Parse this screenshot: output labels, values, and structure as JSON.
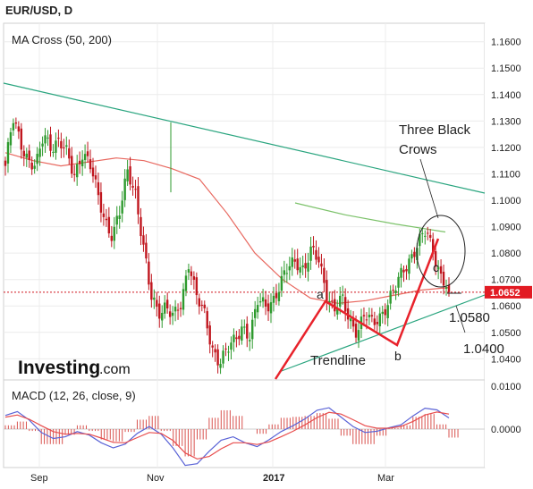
{
  "header": {
    "symbol_title": "EUR/USD, D"
  },
  "main_panel": {
    "indicator_label": "MA Cross (50, 200)",
    "price_axis_ticks": [
      "1.1600",
      "1.1500",
      "1.1400",
      "1.1300",
      "1.1200",
      "1.1100",
      "1.1000",
      "1.0900",
      "1.0800",
      "1.0700",
      "1.0600",
      "1.0500",
      "1.0400"
    ],
    "current_price": "1.0652",
    "annotations": {
      "three_black_crows_line1": "Three Black",
      "three_black_crows_line2": "Crows",
      "trendline": "Trendline",
      "point_a": "a",
      "point_b": "b",
      "point_c": "c",
      "target_1": "1.0580",
      "target_2": "1.0400"
    },
    "watermark": {
      "brand": "Investing",
      "suffix": ".com"
    }
  },
  "macd_panel": {
    "label": "MACD (12, 26, close, 9)",
    "axis_ticks": [
      "0.0100",
      "0.0000"
    ]
  },
  "x_axis": {
    "labels": [
      "Sep",
      "Nov",
      "2017",
      "Mar"
    ]
  },
  "colors": {
    "up_candle": "#2e9a2e",
    "down_candle": "#c0161e",
    "ma_fast": "#e8685f",
    "ma_slow": "#7cc26a",
    "channel": "#2aa57f",
    "pattern_lines": "#e8222b",
    "price_label_bg": "#e21b23",
    "macd_line": "#5a63d6",
    "signal_line": "#e84d4d",
    "histogram": "#d9534f"
  },
  "chart_data": {
    "type": "candlestick",
    "title": "EUR/USD, D",
    "y_range": [
      1.032,
      1.167
    ],
    "y_ticks": [
      1.16,
      1.15,
      1.14,
      1.13,
      1.12,
      1.11,
      1.1,
      1.09,
      1.08,
      1.07,
      1.06,
      1.05,
      1.04
    ],
    "x_labels": [
      "Sep",
      "Nov",
      "2017",
      "Mar"
    ],
    "last_close": 1.0652,
    "series": [
      {
        "name": "MA Cross (50, 200)",
        "values": [
          1.118,
          1.115,
          1.113,
          1.1145,
          1.116,
          1.115,
          1.112,
          1.108,
          1.095,
          1.08,
          1.07,
          1.063,
          1.061,
          1.062,
          1.064,
          1.066,
          1.067
        ]
      },
      {
        "name": "MA Cross (50, 200)",
        "values": [
          1.099,
          1.0945,
          1.091,
          1.088
        ]
      }
    ],
    "price_path": [
      1.113,
      1.13,
      1.122,
      1.116,
      1.112,
      1.124,
      1.121,
      1.123,
      1.117,
      1.109,
      1.119,
      1.114,
      1.102,
      1.093,
      1.087,
      1.095,
      1.111,
      1.104,
      1.083,
      1.063,
      1.058,
      1.061,
      1.055,
      1.06,
      1.078,
      1.064,
      1.056,
      1.044,
      1.04,
      1.043,
      1.046,
      1.053,
      1.049,
      1.061,
      1.06,
      1.063,
      1.068,
      1.074,
      1.078,
      1.074,
      1.08,
      1.077,
      1.066,
      1.058,
      1.062,
      1.055,
      1.051,
      1.056,
      1.053,
      1.057,
      1.061,
      1.066,
      1.074,
      1.079,
      1.083,
      1.088,
      1.081,
      1.071,
      1.0652
    ],
    "annotation_targets": [
      1.058,
      1.04
    ],
    "macd": {
      "name": "MACD (12, 26, close, 9)",
      "y_range": [
        -0.009,
        0.0115
      ],
      "y_ticks": [
        0.01,
        0.0
      ],
      "macd_values": [
        0.0032,
        0.0041,
        0.0021,
        -0.0008,
        -0.0022,
        -0.0018,
        -0.0006,
        -0.0014,
        -0.0032,
        -0.0044,
        -0.0035,
        -0.001,
        0.0006,
        -0.0012,
        -0.0045,
        -0.0085,
        -0.0081,
        -0.0052,
        -0.0026,
        -0.0018,
        -0.0032,
        -0.0041,
        -0.0025,
        -0.0006,
        0.0008,
        0.0024,
        0.0044,
        0.005,
        0.0028,
        0.0006,
        -0.0008,
        -0.0005,
        0.0003,
        0.001,
        0.0031,
        0.0049,
        0.0045,
        0.0026
      ],
      "signal_values": [
        0.0028,
        0.0033,
        0.0023,
        0.0008,
        -0.0006,
        -0.0012,
        -0.001,
        -0.0012,
        -0.0021,
        -0.0031,
        -0.0032,
        -0.002,
        -0.0008,
        -0.001,
        -0.0027,
        -0.0056,
        -0.007,
        -0.0064,
        -0.0046,
        -0.0032,
        -0.0032,
        -0.0036,
        -0.003,
        -0.0018,
        -0.0005,
        0.001,
        0.0027,
        0.0039,
        0.0035,
        0.0022,
        0.0008,
        0.0002,
        0.0002,
        0.0006,
        0.0018,
        0.0033,
        0.004,
        0.0035
      ]
    }
  }
}
